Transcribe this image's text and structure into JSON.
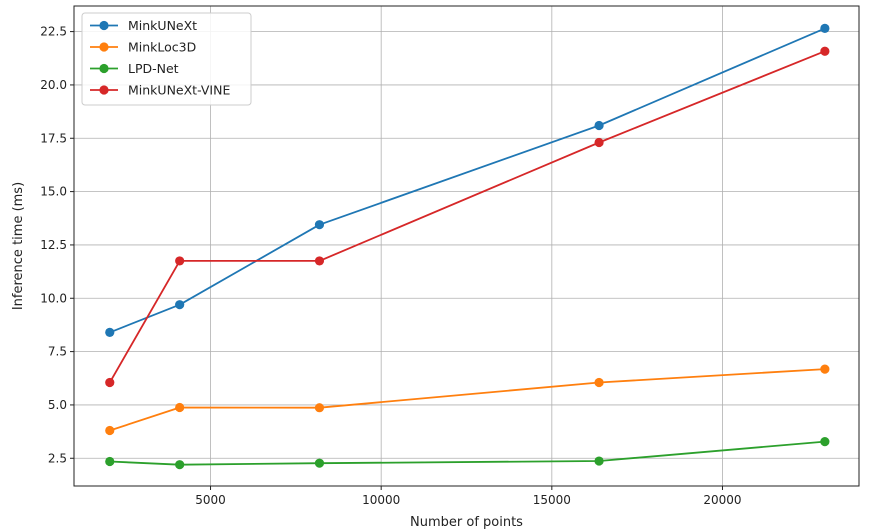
{
  "chart_data": {
    "type": "line",
    "title": "",
    "xlabel": "Number of points",
    "ylabel": "Inference time (ms)",
    "xlim": [
      1000,
      24000
    ],
    "ylim": [
      1.2,
      23.7
    ],
    "xticks": [
      5000,
      10000,
      15000,
      20000
    ],
    "yticks": [
      2.5,
      5.0,
      7.5,
      10.0,
      12.5,
      15.0,
      17.5,
      20.0,
      22.5
    ],
    "grid": true,
    "legend_position": "top-left",
    "x": [
      2048,
      4096,
      8192,
      16384,
      23000
    ],
    "series": [
      {
        "name": "MinkUNeXt",
        "color": "#1f77b4",
        "values": [
          8.4,
          9.7,
          13.45,
          18.1,
          22.65
        ]
      },
      {
        "name": "MinkLoc3D",
        "color": "#ff7f0e",
        "values": [
          3.8,
          4.88,
          4.87,
          6.05,
          6.68
        ]
      },
      {
        "name": "LPD-Net",
        "color": "#2ca02c",
        "values": [
          2.35,
          2.2,
          2.27,
          2.37,
          3.28
        ]
      },
      {
        "name": "MinkUNeXt-VINE",
        "color": "#d62728",
        "values": [
          6.05,
          11.75,
          11.75,
          17.3,
          21.58
        ]
      }
    ]
  }
}
